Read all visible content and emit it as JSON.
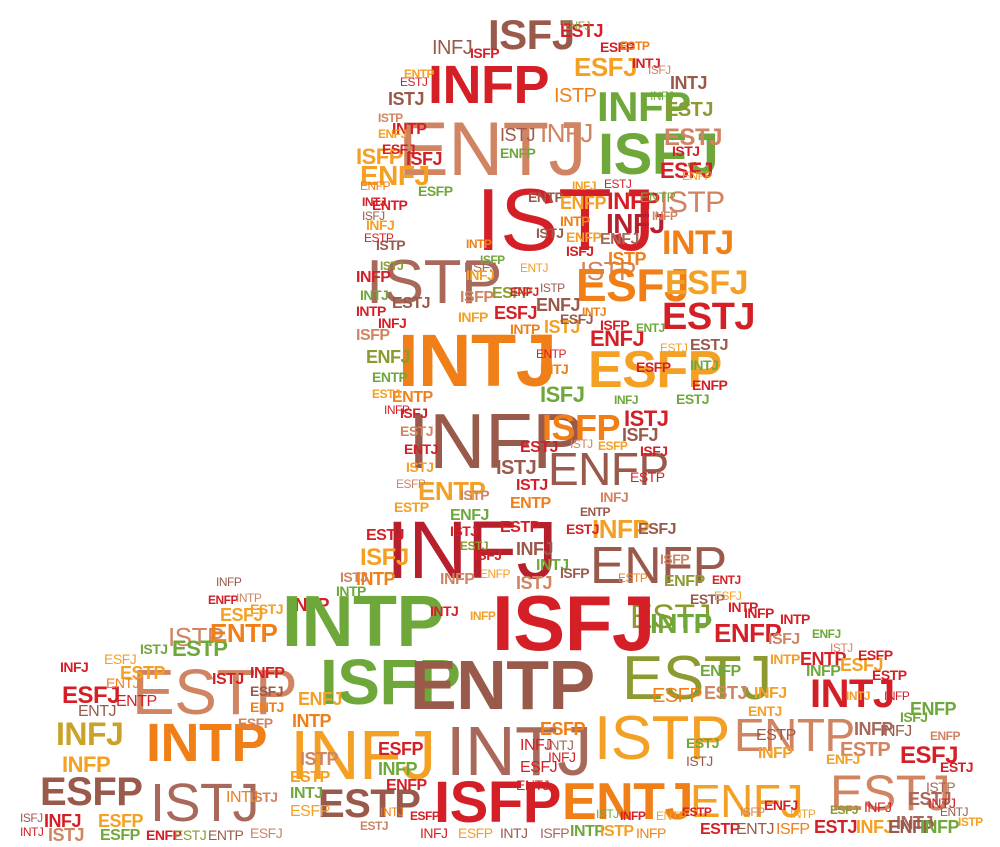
{
  "colors": {
    "red": "#d41f26",
    "darkred": "#b71f2c",
    "orange": "#f07f17",
    "amber": "#f4a024",
    "gold": "#c9a227",
    "green": "#6fa83a",
    "olive": "#8c9a2f",
    "brown": "#9a5a4b",
    "tan": "#d08462",
    "mauve": "#a8695b"
  },
  "words": [
    {
      "text": "ISFJ",
      "color": "brown"
    },
    {
      "text": "ESTJ",
      "color": "red"
    },
    {
      "text": "ESFP",
      "color": "red"
    },
    {
      "text": "INFJ",
      "color": "brown"
    },
    {
      "text": "INFP",
      "color": "red"
    },
    {
      "text": "ESFJ",
      "color": "amber"
    },
    {
      "text": "ISTP",
      "color": "orange"
    },
    {
      "text": "ISTJ",
      "color": "brown"
    },
    {
      "text": "INFP",
      "color": "green"
    },
    {
      "text": "ENTJ",
      "color": "tan"
    },
    {
      "text": "INTJ",
      "color": "brown"
    },
    {
      "text": "ESTJ",
      "color": "olive"
    },
    {
      "text": "INFJ",
      "color": "tan"
    },
    {
      "text": "ISTJ",
      "color": "brown"
    },
    {
      "text": "ISFJ",
      "color": "green"
    },
    {
      "text": "INTP",
      "color": "red"
    },
    {
      "text": "ISFJ",
      "color": "red"
    },
    {
      "text": "ESTJ",
      "color": "tan"
    },
    {
      "text": "ENFP",
      "color": "green"
    },
    {
      "text": "ISFP",
      "color": "amber"
    },
    {
      "text": "ENFJ",
      "color": "amber"
    },
    {
      "text": "ISTJ",
      "color": "red"
    },
    {
      "text": "INFP",
      "color": "red"
    },
    {
      "text": "INFJ",
      "color": "darkred"
    },
    {
      "text": "ISTP",
      "color": "tan"
    },
    {
      "text": "ESFJ",
      "color": "red"
    },
    {
      "text": "INTJ",
      "color": "orange"
    },
    {
      "text": "ISTP",
      "color": "mauve"
    },
    {
      "text": "ISTP",
      "color": "tan"
    },
    {
      "text": "ESFJ",
      "color": "orange"
    },
    {
      "text": "ESFJ",
      "color": "amber"
    },
    {
      "text": "ESTJ",
      "color": "red"
    },
    {
      "text": "ESFJ",
      "color": "mauve"
    },
    {
      "text": "INTJ",
      "color": "orange"
    },
    {
      "text": "ISTJ",
      "color": "amber"
    },
    {
      "text": "ESFP",
      "color": "amber"
    },
    {
      "text": "ENFJ",
      "color": "red"
    },
    {
      "text": "INFP",
      "color": "brown"
    },
    {
      "text": "ISFP",
      "color": "orange"
    },
    {
      "text": "ISTJ",
      "color": "red"
    },
    {
      "text": "ENFP",
      "color": "brown"
    },
    {
      "text": "ENTP",
      "color": "amber"
    },
    {
      "text": "INFJ",
      "color": "darkred"
    },
    {
      "text": "ENFP",
      "color": "brown"
    },
    {
      "text": "INFP",
      "color": "amber"
    },
    {
      "text": "ISFJ",
      "color": "amber"
    },
    {
      "text": "ESTJ",
      "color": "olive"
    },
    {
      "text": "INTP",
      "color": "red"
    },
    {
      "text": "INTP",
      "color": "green"
    },
    {
      "text": "ISFJ",
      "color": "red"
    },
    {
      "text": "INTP",
      "color": "green"
    },
    {
      "text": "ESFJ",
      "color": "amber"
    },
    {
      "text": "ISTP",
      "color": "tan"
    },
    {
      "text": "ESTP",
      "color": "green"
    },
    {
      "text": "ENTP",
      "color": "orange"
    },
    {
      "text": "ENFP",
      "color": "red"
    },
    {
      "text": "ENTP",
      "color": "red"
    },
    {
      "text": "ESTP",
      "color": "tan"
    },
    {
      "text": "ISFP",
      "color": "green"
    },
    {
      "text": "ENTP",
      "color": "brown"
    },
    {
      "text": "ESTJ",
      "color": "olive"
    },
    {
      "text": "INTJ",
      "color": "red"
    },
    {
      "text": "ESFJ",
      "color": "red"
    },
    {
      "text": "INFJ",
      "color": "gold"
    },
    {
      "text": "INTP",
      "color": "orange"
    },
    {
      "text": "INFJ",
      "color": "amber"
    },
    {
      "text": "INTJ",
      "color": "mauve"
    },
    {
      "text": "ISTP",
      "color": "amber"
    },
    {
      "text": "ENTP",
      "color": "tan"
    },
    {
      "text": "ESFJ",
      "color": "red"
    },
    {
      "text": "ESFP",
      "color": "brown"
    },
    {
      "text": "ISTJ",
      "color": "mauve"
    },
    {
      "text": "ESTP",
      "color": "brown"
    },
    {
      "text": "ISFP",
      "color": "red"
    },
    {
      "text": "ENTJ",
      "color": "orange"
    },
    {
      "text": "ENFJ",
      "color": "amber"
    },
    {
      "text": "ESTJ",
      "color": "tan"
    },
    {
      "text": "INFJ",
      "color": "red"
    },
    {
      "text": "ESFP",
      "color": "amber"
    },
    {
      "text": "INTJ",
      "color": "mauve"
    },
    {
      "text": "INFP",
      "color": "mauve"
    },
    {
      "text": "ESTP",
      "color": "tan"
    },
    {
      "text": "ESTJ",
      "color": "mauve"
    },
    {
      "text": "ENFP",
      "color": "green"
    },
    {
      "text": "ESTP",
      "color": "amber"
    },
    {
      "text": "ENTJ",
      "color": "brown"
    },
    {
      "text": "ENTP",
      "color": "red"
    },
    {
      "text": "INFP",
      "color": "amber"
    },
    {
      "text": "ESFP",
      "color": "green"
    },
    {
      "text": "ENTP",
      "color": "red"
    },
    {
      "text": "INFJ",
      "color": "amber"
    },
    {
      "text": "ISTP",
      "color": "brown"
    },
    {
      "text": "INFP",
      "color": "red"
    },
    {
      "text": "INTJ",
      "color": "green"
    },
    {
      "text": "INTP",
      "color": "red"
    },
    {
      "text": "ESTJ",
      "color": "brown"
    },
    {
      "text": "ISFP",
      "color": "tan"
    },
    {
      "text": "ENFJ",
      "color": "olive"
    },
    {
      "text": "ENTP",
      "color": "green"
    },
    {
      "text": "ENTP",
      "color": "orange"
    },
    {
      "text": "ISFJ",
      "color": "red"
    },
    {
      "text": "ESTJ",
      "color": "tan"
    },
    {
      "text": "ENTJ",
      "color": "red"
    },
    {
      "text": "ISTJ",
      "color": "amber"
    },
    {
      "text": "INFJ",
      "color": "amber"
    },
    {
      "text": "ISFP",
      "color": "tan"
    },
    {
      "text": "INFP",
      "color": "amber"
    },
    {
      "text": "ESFP",
      "color": "olive"
    },
    {
      "text": "ESFJ",
      "color": "red"
    },
    {
      "text": "INTP",
      "color": "orange"
    },
    {
      "text": "ENFJ",
      "color": "brown"
    },
    {
      "text": "ENTP",
      "color": "brown"
    },
    {
      "text": "ENFP",
      "color": "amber"
    },
    {
      "text": "INTP",
      "color": "orange"
    },
    {
      "text": "ENFP",
      "color": "amber"
    },
    {
      "text": "ISFJ",
      "color": "red"
    },
    {
      "text": "ISTJ",
      "color": "brown"
    },
    {
      "text": "ENFJ",
      "color": "mauve"
    },
    {
      "text": "ISTP",
      "color": "orange"
    },
    {
      "text": "ESTJ",
      "color": "brown"
    },
    {
      "text": "INTJ",
      "color": "green"
    },
    {
      "text": "ENFP",
      "color": "red"
    },
    {
      "text": "ESTJ",
      "color": "green"
    },
    {
      "text": "ISFJ",
      "color": "green"
    },
    {
      "text": "ISFJ",
      "color": "brown"
    },
    {
      "text": "ISFJ",
      "color": "red"
    },
    {
      "text": "ESTJ",
      "color": "red"
    },
    {
      "text": "ISTJ",
      "color": "brown"
    },
    {
      "text": "ISTJ",
      "color": "red"
    },
    {
      "text": "ENTP",
      "color": "orange"
    },
    {
      "text": "ISTP",
      "color": "tan"
    },
    {
      "text": "ENFJ",
      "color": "green"
    },
    {
      "text": "ISTJ",
      "color": "red"
    },
    {
      "text": "ESTP",
      "color": "amber"
    },
    {
      "text": "ESTJ",
      "color": "red"
    },
    {
      "text": "INTP",
      "color": "orange"
    },
    {
      "text": "ISTJ",
      "color": "tan"
    },
    {
      "text": "INTP",
      "color": "green"
    },
    {
      "text": "INFP",
      "color": "tan"
    },
    {
      "text": "ESTP",
      "color": "red"
    },
    {
      "text": "INFJ",
      "color": "brown"
    },
    {
      "text": "INTJ",
      "color": "green"
    },
    {
      "text": "ISTJ",
      "color": "tan"
    },
    {
      "text": "ESTJ",
      "color": "red"
    },
    {
      "text": "ESFJ",
      "color": "brown"
    },
    {
      "text": "ISFP",
      "color": "tan"
    },
    {
      "text": "ENFP",
      "color": "olive"
    },
    {
      "text": "ESTP",
      "color": "brown"
    },
    {
      "text": "INTP",
      "color": "red"
    },
    {
      "text": "INFP",
      "color": "red"
    },
    {
      "text": "ISFJ",
      "color": "tan"
    },
    {
      "text": "INTP",
      "color": "amber"
    },
    {
      "text": "INFP",
      "color": "green"
    },
    {
      "text": "ESFJ",
      "color": "amber"
    },
    {
      "text": "ESTP",
      "color": "red"
    },
    {
      "text": "INFJ",
      "color": "amber"
    },
    {
      "text": "ENTJ",
      "color": "amber"
    },
    {
      "text": "ESTJ",
      "color": "tan"
    },
    {
      "text": "ENFP",
      "color": "green"
    },
    {
      "text": "ESFP",
      "color": "orange"
    },
    {
      "text": "INFP",
      "color": "red"
    },
    {
      "text": "ESFJ",
      "color": "brown"
    },
    {
      "text": "ENTJ",
      "color": "orange"
    },
    {
      "text": "ISTJ",
      "color": "red"
    },
    {
      "text": "ESFP",
      "color": "tan"
    },
    {
      "text": "ENFJ",
      "color": "amber"
    },
    {
      "text": "INTP",
      "color": "orange"
    },
    {
      "text": "ESFP",
      "color": "red"
    },
    {
      "text": "INFP",
      "color": "green"
    },
    {
      "text": "ENFP",
      "color": "red"
    },
    {
      "text": "ISTP",
      "color": "tan"
    },
    {
      "text": "ESTP",
      "color": "amber"
    },
    {
      "text": "INTJ",
      "color": "green"
    },
    {
      "text": "ESFP",
      "color": "amber"
    },
    {
      "text": "ISTJ",
      "color": "tan"
    },
    {
      "text": "INTJ",
      "color": "orange"
    },
    {
      "text": "INFJ",
      "color": "red"
    },
    {
      "text": "ESFP",
      "color": "orange"
    },
    {
      "text": "INTJ",
      "color": "mauve"
    },
    {
      "text": "INFJ",
      "color": "red"
    },
    {
      "text": "ESFJ",
      "color": "red"
    },
    {
      "text": "ENTJ",
      "color": "red"
    },
    {
      "text": "ESTJ",
      "color": "green"
    },
    {
      "text": "ISTJ",
      "color": "brown"
    },
    {
      "text": "INFP",
      "color": "amber"
    },
    {
      "text": "ESTP",
      "color": "brown"
    },
    {
      "text": "ENFJ",
      "color": "amber"
    },
    {
      "text": "INFJ",
      "color": "brown"
    },
    {
      "text": "ISTP",
      "color": "mauve"
    },
    {
      "text": "INTJ",
      "color": "red"
    },
    {
      "text": "ENFP",
      "color": "red"
    },
    {
      "text": "ESTJ",
      "color": "olive"
    },
    {
      "text": "ENTP",
      "color": "brown"
    },
    {
      "text": "ESFJ",
      "color": "tan"
    },
    {
      "text": "INFJ",
      "color": "red"
    },
    {
      "text": "ESFP",
      "color": "amber"
    },
    {
      "text": "INTJ",
      "color": "brown"
    },
    {
      "text": "ISFP",
      "color": "mauve"
    },
    {
      "text": "INTP",
      "color": "green"
    },
    {
      "text": "ISTP",
      "color": "amber"
    },
    {
      "text": "INFP",
      "color": "orange"
    },
    {
      "text": "ESTP",
      "color": "red"
    },
    {
      "text": "ENTJ",
      "color": "brown"
    },
    {
      "text": "ISFP",
      "color": "orange"
    },
    {
      "text": "ESTJ",
      "color": "red"
    },
    {
      "text": "INFJ",
      "color": "amber"
    },
    {
      "text": "ENFP",
      "color": "brown"
    },
    {
      "text": "INFP",
      "color": "green"
    },
    {
      "text": "ISFJ",
      "color": "brown"
    },
    {
      "text": "INTJ",
      "color": "red"
    },
    {
      "text": "ISTJ",
      "color": "tan"
    },
    {
      "text": "ESFP",
      "color": "green"
    },
    {
      "text": "INFJ",
      "color": "red"
    },
    {
      "text": "ESFJ",
      "color": "amber"
    },
    {
      "text": "ENTJ",
      "color": "orange"
    },
    {
      "text": "ISTJ",
      "color": "green"
    },
    {
      "text": "ENFP",
      "color": "red"
    },
    {
      "text": "INTP",
      "color": "tan"
    },
    {
      "text": "ESTJ",
      "color": "amber"
    },
    {
      "text": "INFP",
      "color": "brown"
    },
    {
      "text": "ISFP",
      "color": "red"
    },
    {
      "text": "ENFJ",
      "color": "olive"
    },
    {
      "text": "ESTP",
      "color": "orange"
    },
    {
      "text": "INTJ",
      "color": "red"
    },
    {
      "text": "ISFJ",
      "color": "tan"
    },
    {
      "text": "INFJ",
      "color": "green"
    },
    {
      "text": "ESTJ",
      "color": "red"
    },
    {
      "text": "ENTP",
      "color": "amber"
    },
    {
      "text": "ISTP",
      "color": "tan"
    },
    {
      "text": "ENFJ",
      "color": "amber"
    },
    {
      "text": "ESFJ",
      "color": "red"
    },
    {
      "text": "ENFP",
      "color": "orange"
    },
    {
      "text": "INTJ",
      "color": "red"
    },
    {
      "text": "ISFJ",
      "color": "brown"
    },
    {
      "text": "ESTP",
      "color": "red"
    },
    {
      "text": "ISTJ",
      "color": "olive"
    },
    {
      "text": "INFJ",
      "color": "red"
    },
    {
      "text": "ESTJ",
      "color": "amber"
    },
    {
      "text": "INFP",
      "color": "red"
    },
    {
      "text": "ESFP",
      "color": "tan"
    },
    {
      "text": "INTP",
      "color": "orange"
    },
    {
      "text": "ISFP",
      "color": "green"
    },
    {
      "text": "ENTJ",
      "color": "amber"
    },
    {
      "text": "ENFJ",
      "color": "red"
    },
    {
      "text": "ISTP",
      "color": "brown"
    },
    {
      "text": "INFJ",
      "color": "amber"
    },
    {
      "text": "ESTJ",
      "color": "red"
    },
    {
      "text": "ENTP",
      "color": "green"
    },
    {
      "text": "INFP",
      "color": "tan"
    },
    {
      "text": "ISTJ",
      "color": "red"
    },
    {
      "text": "ENFP",
      "color": "amber"
    },
    {
      "text": "ESFJ",
      "color": "brown"
    },
    {
      "text": "INTJ",
      "color": "orange"
    },
    {
      "text": "ISFP",
      "color": "red"
    },
    {
      "text": "ENTJ",
      "color": "green"
    },
    {
      "text": "ESTJ",
      "color": "amber"
    },
    {
      "text": "ESFP",
      "color": "red"
    },
    {
      "text": "INTJ",
      "color": "orange"
    },
    {
      "text": "ENTP",
      "color": "red"
    },
    {
      "text": "INFJ",
      "color": "green"
    },
    {
      "text": "ISTJ",
      "color": "tan"
    },
    {
      "text": "ESFP",
      "color": "amber"
    },
    {
      "text": "ESTP",
      "color": "red"
    },
    {
      "text": "INFJ",
      "color": "tan"
    },
    {
      "text": "ENTP",
      "color": "brown"
    },
    {
      "text": "ISFJ",
      "color": "red"
    },
    {
      "text": "ENFP",
      "color": "amber"
    },
    {
      "text": "ESTJ",
      "color": "olive"
    },
    {
      "text": "INTJ",
      "color": "red"
    },
    {
      "text": "INFP",
      "color": "amber"
    },
    {
      "text": "ISFP",
      "color": "brown"
    },
    {
      "text": "ESTP",
      "color": "orange"
    },
    {
      "text": "ENTJ",
      "color": "red"
    },
    {
      "text": "ESFJ",
      "color": "amber"
    },
    {
      "text": "INTP",
      "color": "red"
    },
    {
      "text": "ENFJ",
      "color": "green"
    },
    {
      "text": "ISTJ",
      "color": "tan"
    },
    {
      "text": "ESFP",
      "color": "red"
    },
    {
      "text": "INTJ",
      "color": "amber"
    },
    {
      "text": "INFP",
      "color": "red"
    },
    {
      "text": "ISFJ",
      "color": "green"
    },
    {
      "text": "ENFP",
      "color": "tan"
    },
    {
      "text": "ESTJ",
      "color": "red"
    },
    {
      "text": "ENTJ",
      "color": "brown"
    },
    {
      "text": "ISTP",
      "color": "amber"
    },
    {
      "text": "INFJ",
      "color": "red"
    },
    {
      "text": "ESFJ",
      "color": "olive"
    },
    {
      "text": "INTP",
      "color": "amber"
    },
    {
      "text": "ENFJ",
      "color": "red"
    },
    {
      "text": "ISFP",
      "color": "tan"
    },
    {
      "text": "ESTP",
      "color": "red"
    },
    {
      "text": "ENTP",
      "color": "amber"
    },
    {
      "text": "INFP",
      "color": "red"
    },
    {
      "text": "ISTJ",
      "color": "green"
    },
    {
      "text": "ESFP",
      "color": "red"
    },
    {
      "text": "INTJ",
      "color": "orange"
    },
    {
      "text": "ESTJ",
      "color": "tan"
    },
    {
      "text": "ESFJ",
      "color": "red"
    },
    {
      "text": "ISFJ",
      "color": "amber"
    },
    {
      "text": "INFJ",
      "color": "red"
    },
    {
      "text": "ENTJ",
      "color": "amber"
    },
    {
      "text": "INTP",
      "color": "green"
    },
    {
      "text": "ISTP",
      "color": "red"
    },
    {
      "text": "ESTP",
      "color": "amber"
    },
    {
      "text": "ENFP",
      "color": "red"
    },
    {
      "text": "INFP",
      "color": "tan"
    },
    {
      "text": "ISFP",
      "color": "red"
    },
    {
      "text": "ENTP",
      "color": "green"
    },
    {
      "text": "ESTJ",
      "color": "red"
    },
    {
      "text": "INTJ",
      "color": "amber"
    },
    {
      "text": "ESFJ",
      "color": "red"
    },
    {
      "text": "ENFJ",
      "color": "tan"
    },
    {
      "text": "INFJ",
      "color": "red"
    },
    {
      "text": "ESFP",
      "color": "amber"
    },
    {
      "text": "ISTJ",
      "color": "red"
    },
    {
      "text": "ISFJ",
      "color": "olive"
    },
    {
      "text": "INTP",
      "color": "red"
    },
    {
      "text": "ESTP",
      "color": "tan"
    },
    {
      "text": "ENTJ",
      "color": "red"
    },
    {
      "text": "INFP",
      "color": "amber"
    },
    {
      "text": "ENFP",
      "color": "red"
    },
    {
      "text": "ISTP",
      "color": "green"
    },
    {
      "text": "ESTJ",
      "color": "red"
    },
    {
      "text": "INTJ",
      "color": "tan"
    },
    {
      "text": "ESFJ",
      "color": "red"
    },
    {
      "text": "INFJ",
      "color": "amber"
    },
    {
      "text": "ENTP",
      "color": "red"
    },
    {
      "text": "ISFP",
      "color": "amber"
    },
    {
      "text": "ESFP",
      "color": "red"
    },
    {
      "text": "ENFJ",
      "color": "green"
    },
    {
      "text": "ISTJ",
      "color": "red"
    },
    {
      "text": "INTP",
      "color": "tan"
    },
    {
      "text": "INFP",
      "color": "red"
    },
    {
      "text": "ESTP",
      "color": "amber"
    },
    {
      "text": "ESTJ",
      "color": "red"
    }
  ]
}
